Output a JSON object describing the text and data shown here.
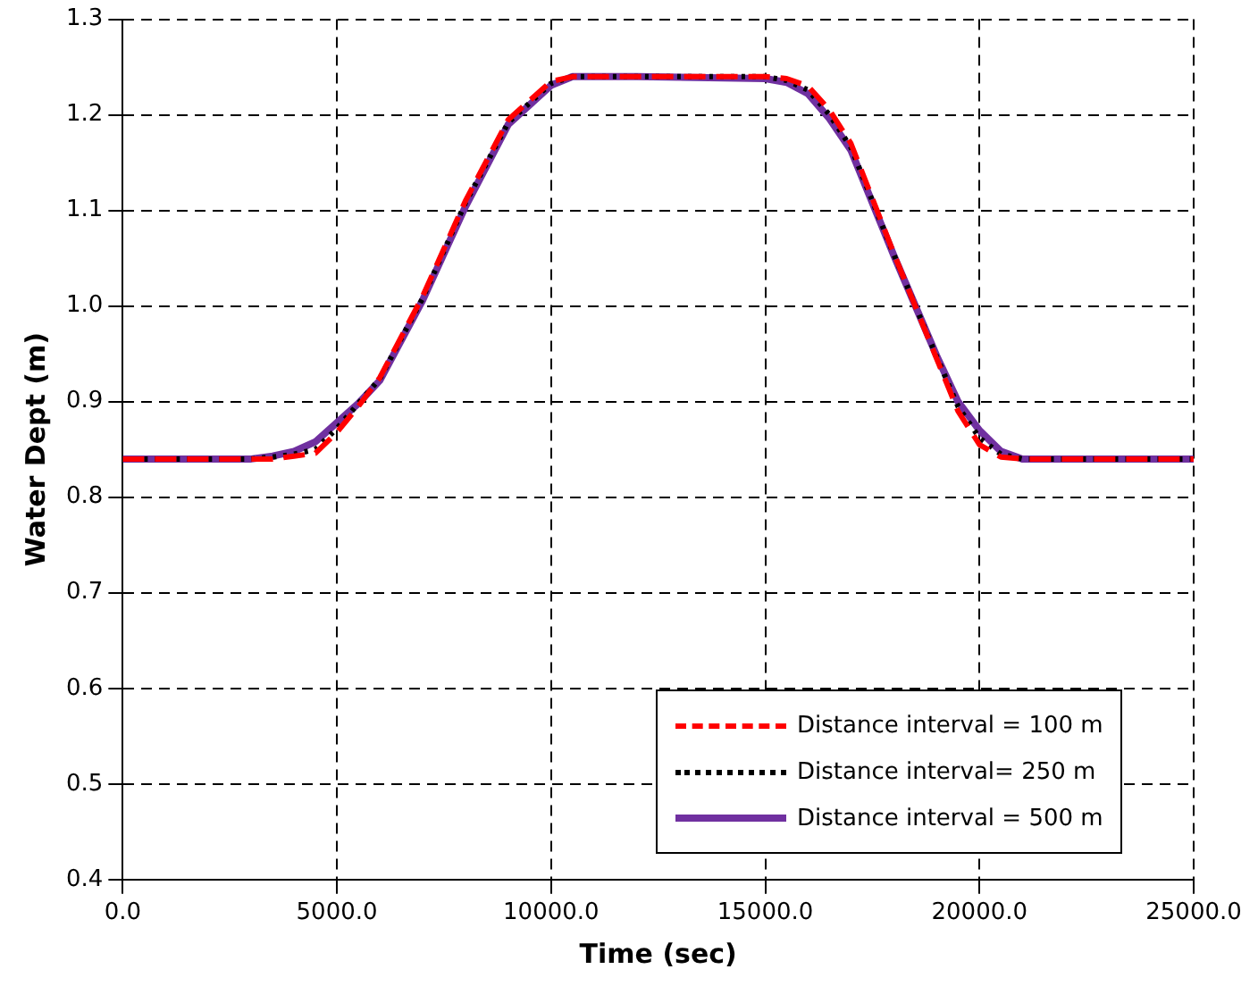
{
  "chart_data": {
    "type": "line",
    "xlabel": "Time (sec)",
    "ylabel": "Water Dept (m)",
    "xlim": [
      0,
      25000
    ],
    "ylim": [
      0.4,
      1.3
    ],
    "xticks": [
      {
        "value": 0,
        "label": "0.0"
      },
      {
        "value": 5000,
        "label": "5000.0"
      },
      {
        "value": 10000,
        "label": "10000.0"
      },
      {
        "value": 15000,
        "label": "15000.0"
      },
      {
        "value": 20000,
        "label": "20000.0"
      },
      {
        "value": 25000,
        "label": "25000.0"
      }
    ],
    "yticks": [
      0.4,
      0.5,
      0.6,
      0.7,
      0.8,
      0.9,
      {
        "value": 1,
        "label": "1.0"
      },
      1.1,
      1.2,
      1.3
    ],
    "grid": true,
    "legend": "bottom right",
    "marker": "none",
    "series": [
      {
        "name": "Distance interval = 100 m",
        "color": "#ff0000",
        "line_style": "dashed",
        "x": [
          0,
          3000,
          3500,
          4000,
          4500,
          5000,
          5500,
          6000,
          7000,
          8000,
          9000,
          10000,
          10500,
          12000,
          15000,
          15500,
          16000,
          16500,
          17000,
          18000,
          19000,
          19500,
          20000,
          20500,
          21000,
          25000
        ],
        "values": [
          0.84,
          0.84,
          0.84,
          0.843,
          0.846,
          0.868,
          0.895,
          0.925,
          1.01,
          1.11,
          1.195,
          1.235,
          1.24,
          1.24,
          1.24,
          1.238,
          1.23,
          1.205,
          1.17,
          1.055,
          0.945,
          0.89,
          0.855,
          0.842,
          0.84,
          0.84
        ]
      },
      {
        "name": "Distance interval= 250 m",
        "color": "#000000",
        "line_style": "dotted",
        "x": [
          0,
          3000,
          3500,
          4000,
          4500,
          5000,
          5500,
          6000,
          7000,
          8000,
          9000,
          10000,
          10500,
          12000,
          15000,
          15500,
          16000,
          16500,
          17000,
          18000,
          19000,
          19500,
          20000,
          20500,
          21000,
          25000
        ],
        "values": [
          0.84,
          0.84,
          0.842,
          0.845,
          0.85,
          0.872,
          0.898,
          0.924,
          1.008,
          1.108,
          1.192,
          1.233,
          1.24,
          1.24,
          1.24,
          1.236,
          1.226,
          1.2,
          1.166,
          1.054,
          0.947,
          0.895,
          0.862,
          0.845,
          0.84,
          0.84
        ]
      },
      {
        "name": "Distance interval = 500 m",
        "color": "#7030a0",
        "line_style": "solid",
        "x": [
          0,
          3000,
          3500,
          4000,
          4500,
          5000,
          5500,
          6000,
          7000,
          8000,
          9000,
          10000,
          10500,
          12000,
          15000,
          15500,
          16000,
          16500,
          17000,
          18000,
          19000,
          19500,
          20000,
          20500,
          21000,
          25000
        ],
        "values": [
          0.84,
          0.84,
          0.843,
          0.848,
          0.858,
          0.878,
          0.898,
          0.922,
          1.006,
          1.104,
          1.19,
          1.231,
          1.24,
          1.24,
          1.238,
          1.234,
          1.222,
          1.196,
          1.163,
          1.053,
          0.948,
          0.9,
          0.87,
          0.848,
          0.84,
          0.84
        ]
      }
    ]
  }
}
